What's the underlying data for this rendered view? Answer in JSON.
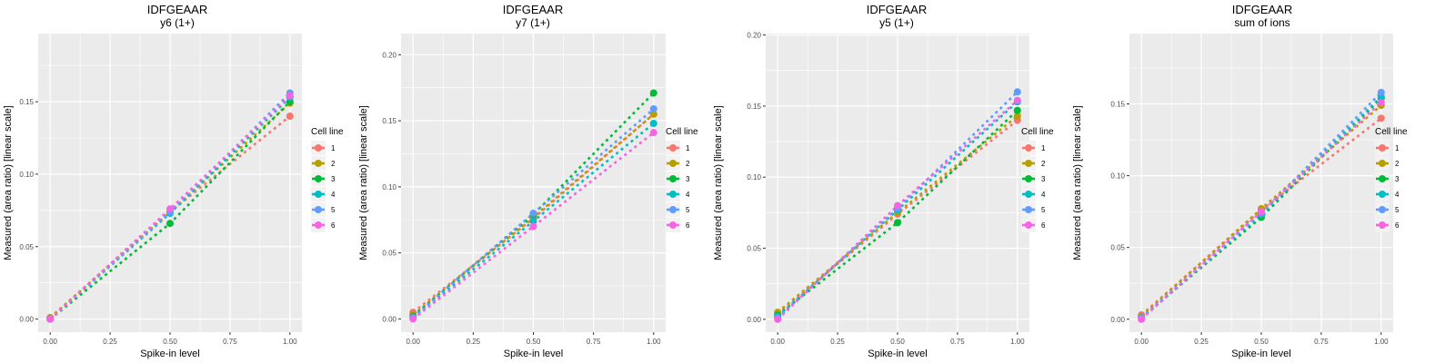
{
  "colors": {
    "1": "#F8766D",
    "2": "#B79F00",
    "3": "#00BA38",
    "4": "#00BFC4",
    "5": "#619CFF",
    "6": "#F564E3"
  },
  "chart_data": [
    {
      "type": "line",
      "title": "IDFGEAAR",
      "subtitle": "y6 (1+)",
      "xlabel": "Spike-in level",
      "ylabel": "Measured (area ratio) [linear scale]",
      "xlim": [
        -0.05,
        1.05
      ],
      "ylim": [
        -0.009,
        0.197
      ],
      "xticks": [
        "0.00",
        "0.25",
        "0.50",
        "0.75",
        "1.00"
      ],
      "xtick_values": [
        0,
        0.25,
        0.5,
        0.75,
        1.0
      ],
      "yticks": [
        "0.00",
        "0.05",
        "0.10",
        "0.15"
      ],
      "ytick_values": [
        0,
        0.05,
        0.1,
        0.15
      ],
      "legend_title": "Cell line",
      "legend_position": "right",
      "x": [
        0,
        0.5,
        1.0
      ],
      "series": [
        {
          "name": "1",
          "values": [
            0.001,
            0.074,
            0.14
          ]
        },
        {
          "name": "2",
          "values": [
            0.001,
            0.074,
            0.149
          ]
        },
        {
          "name": "3",
          "values": [
            0.0,
            0.066,
            0.15
          ]
        },
        {
          "name": "4",
          "values": [
            0.0,
            0.073,
            0.153
          ]
        },
        {
          "name": "5",
          "values": [
            0.0,
            0.074,
            0.156
          ]
        },
        {
          "name": "6",
          "values": [
            0.0,
            0.076,
            0.154
          ]
        }
      ]
    },
    {
      "type": "line",
      "title": "IDFGEAAR",
      "subtitle": "y7 (1+)",
      "xlabel": "Spike-in level",
      "ylabel": "Measured (area ratio) [linear scale]",
      "xlim": [
        -0.05,
        1.05
      ],
      "ylim": [
        -0.01,
        0.216
      ],
      "xticks": [
        "0.00",
        "0.25",
        "0.50",
        "0.75",
        "1.00"
      ],
      "xtick_values": [
        0,
        0.25,
        0.5,
        0.75,
        1.0
      ],
      "yticks": [
        "0.00",
        "0.05",
        "0.10",
        "0.15",
        "0.20"
      ],
      "ytick_values": [
        0,
        0.05,
        0.1,
        0.15,
        0.2
      ],
      "legend_title": "Cell line",
      "legend_position": "right",
      "x": [
        0,
        0.5,
        1.0
      ],
      "series": [
        {
          "name": "1",
          "values": [
            0.005,
            0.076,
            0.155
          ]
        },
        {
          "name": "2",
          "values": [
            0.003,
            0.077,
            0.155
          ]
        },
        {
          "name": "3",
          "values": [
            0.002,
            0.079,
            0.171
          ]
        },
        {
          "name": "4",
          "values": [
            0.001,
            0.074,
            0.148
          ]
        },
        {
          "name": "5",
          "values": [
            0.001,
            0.08,
            0.159
          ]
        },
        {
          "name": "6",
          "values": [
            0.0,
            0.07,
            0.141
          ]
        }
      ]
    },
    {
      "type": "line",
      "title": "IDFGEAAR",
      "subtitle": "y5 (1+)",
      "xlabel": "Spike-in level",
      "ylabel": "Measured (area ratio) [linear scale]",
      "xlim": [
        -0.05,
        1.05
      ],
      "ylim": [
        -0.009,
        0.201
      ],
      "xticks": [
        "0.00",
        "0.25",
        "0.50",
        "0.75",
        "1.00"
      ],
      "xtick_values": [
        0,
        0.25,
        0.5,
        0.75,
        1.0
      ],
      "yticks": [
        "0.00",
        "0.05",
        "0.10",
        "0.15",
        "0.20"
      ],
      "ytick_values": [
        0,
        0.05,
        0.1,
        0.15,
        0.2
      ],
      "legend_title": "Cell line",
      "legend_position": "right",
      "x": [
        0,
        0.5,
        1.0
      ],
      "series": [
        {
          "name": "1",
          "values": [
            0.004,
            0.074,
            0.14
          ]
        },
        {
          "name": "2",
          "values": [
            0.005,
            0.075,
            0.143
          ]
        },
        {
          "name": "3",
          "values": [
            0.003,
            0.068,
            0.147
          ]
        },
        {
          "name": "4",
          "values": [
            0.002,
            0.077,
            0.153
          ]
        },
        {
          "name": "5",
          "values": [
            0.001,
            0.078,
            0.16
          ]
        },
        {
          "name": "6",
          "values": [
            0.0,
            0.08,
            0.154
          ]
        }
      ]
    },
    {
      "type": "line",
      "title": "IDFGEAAR",
      "subtitle": "sum of ions",
      "xlabel": "Spike-in level",
      "ylabel": "Measured (area ratio) [linear scale]",
      "xlim": [
        -0.05,
        1.05
      ],
      "ylim": [
        -0.009,
        0.199
      ],
      "xticks": [
        "0.00",
        "0.25",
        "0.50",
        "0.75",
        "1.00"
      ],
      "xtick_values": [
        0,
        0.25,
        0.5,
        0.75,
        1.0
      ],
      "yticks": [
        "0.00",
        "0.05",
        "0.10",
        "0.15"
      ],
      "ytick_values": [
        0,
        0.05,
        0.1,
        0.15
      ],
      "legend_title": "Cell line",
      "legend_position": "right",
      "x": [
        0,
        0.5,
        1.0
      ],
      "series": [
        {
          "name": "1",
          "values": [
            0.003,
            0.076,
            0.14
          ]
        },
        {
          "name": "2",
          "values": [
            0.002,
            0.077,
            0.149
          ]
        },
        {
          "name": "3",
          "values": [
            0.001,
            0.071,
            0.154
          ]
        },
        {
          "name": "4",
          "values": [
            0.001,
            0.073,
            0.155
          ]
        },
        {
          "name": "5",
          "values": [
            0.001,
            0.074,
            0.158
          ]
        },
        {
          "name": "6",
          "values": [
            0.0,
            0.075,
            0.151
          ]
        }
      ]
    }
  ]
}
